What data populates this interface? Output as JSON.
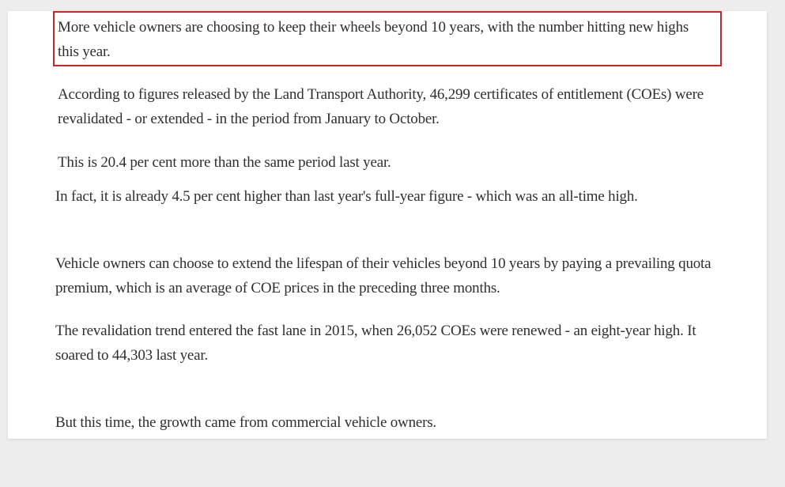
{
  "article": {
    "paragraphs": [
      "More vehicle owners are choosing to keep their wheels beyond 10 years, with the number hitting new highs this year.",
      "According to figures released by the Land Transport Authority, 46,299 certificates of entitlement (COEs) were revalidated - or extended - in the period from January to October.",
      "This is 20.4 per cent more than the same period last year.",
      "In fact, it is already 4.5 per cent higher than last year's full-year figure - which was an all-time high.",
      "Vehicle owners can choose to extend the lifespan of their vehicles beyond 10 years by paying a prevailing quota premium, which is an average of COE prices in the preceding three months.",
      "The revalidation trend entered the fast lane in 2015, when 26,052 COEs were renewed - an eight-year high. It soared to 44,303 last year.",
      "But this time, the growth came from commercial vehicle owners."
    ]
  },
  "colors": {
    "highlight_border": "#d32222",
    "text": "#2f2f2f",
    "page_background": "#ededee",
    "card_background": "#ffffff"
  }
}
